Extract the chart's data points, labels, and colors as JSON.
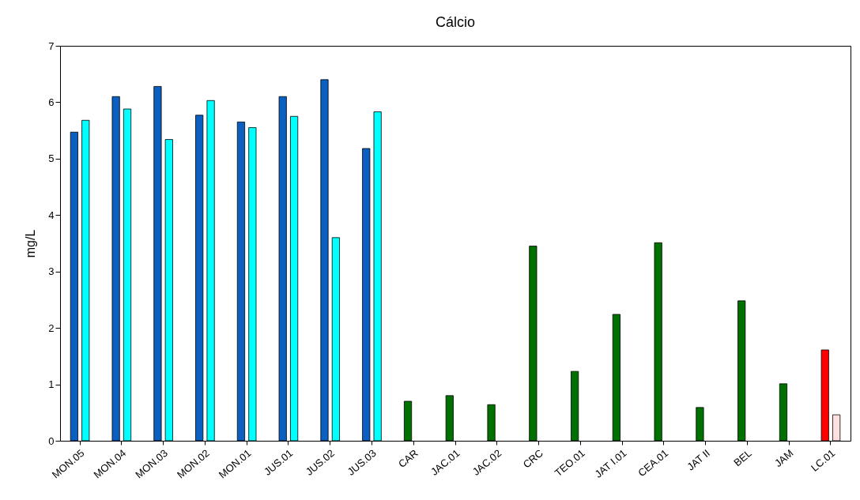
{
  "chart_data": {
    "type": "bar",
    "title": "Cálcio",
    "ylabel": "mg/L",
    "categories": [
      "MON.05",
      "MON.04",
      "MON.03",
      "MON.02",
      "MON.01",
      "JUS.01",
      "JUS.02",
      "JUS.03",
      "CAR",
      "JAC.01",
      "JAC.02",
      "CRC",
      "TEO.01",
      "JAT I.01",
      "CEA.01",
      "JAT II",
      "BEL",
      "JAM",
      "LC.01"
    ],
    "series": [
      {
        "values": [
          5.47,
          6.1,
          6.28,
          5.77,
          5.65,
          6.1,
          6.4,
          5.18,
          0.7,
          0.8,
          0.64,
          3.45,
          1.23,
          2.24,
          3.51,
          0.59,
          2.48,
          1.01,
          1.61
        ],
        "colors": [
          "#0a5fc0",
          "#0a5fc0",
          "#0a5fc0",
          "#0a5fc0",
          "#0a5fc0",
          "#0a5fc0",
          "#0a5fc0",
          "#0a5fc0",
          "#007000",
          "#007000",
          "#007000",
          "#007000",
          "#007000",
          "#007000",
          "#007000",
          "#007000",
          "#007000",
          "#007000",
          "#ff0000"
        ]
      },
      {
        "values": [
          5.68,
          5.88,
          5.34,
          6.03,
          5.55,
          5.75,
          3.6,
          5.83,
          null,
          null,
          null,
          null,
          null,
          null,
          null,
          null,
          null,
          null,
          0.46
        ],
        "colors": [
          "#00ffff",
          "#00ffff",
          "#00ffff",
          "#00ffff",
          "#00ffff",
          "#00ffff",
          "#00ffff",
          "#00ffff",
          null,
          null,
          null,
          null,
          null,
          null,
          null,
          null,
          null,
          null,
          "#ffe0e0"
        ]
      }
    ],
    "ylim": [
      0,
      7
    ],
    "yticks": [
      0,
      1,
      2,
      3,
      4,
      5,
      6,
      7
    ],
    "grid": false
  }
}
